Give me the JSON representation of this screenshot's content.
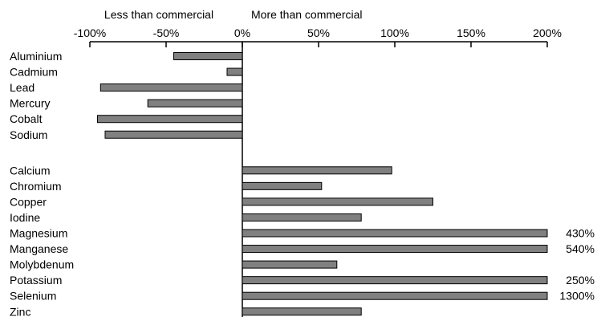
{
  "chart_data": {
    "type": "bar",
    "orientation": "horizontal",
    "title": "",
    "xlabel": "",
    "ylabel": "",
    "xlim": [
      -100,
      200
    ],
    "x_ticks": [
      -100,
      -50,
      0,
      50,
      100,
      150,
      200
    ],
    "x_tick_labels": [
      "-100%",
      "-50%",
      "0%",
      "50%",
      "100%",
      "150%",
      "200%"
    ],
    "axis_headers": {
      "left": "Less than commercial",
      "right": "More than commercial"
    },
    "bar_color": "#808080",
    "bar_edge_color": "#000000",
    "groups": [
      {
        "categories": [
          "Aluminium",
          "Cadmium",
          "Lead",
          "Mercury",
          "Cobalt",
          "Sodium"
        ],
        "values": [
          -45,
          -10,
          -93,
          -62,
          -95,
          -90
        ],
        "value_labels": [
          "",
          "",
          "",
          "",
          "",
          ""
        ]
      },
      {
        "categories": [
          "Calcium",
          "Chromium",
          "Copper",
          "Iodine",
          "Magnesium",
          "Manganese",
          "Molybdenum",
          "Potassium",
          "Selenium",
          "Zinc"
        ],
        "values": [
          98,
          52,
          125,
          78,
          430,
          540,
          62,
          250,
          1300,
          78
        ],
        "value_labels": [
          "",
          "",
          "",
          "",
          "430%",
          "540%",
          "",
          "250%",
          "1300%",
          ""
        ]
      }
    ]
  }
}
